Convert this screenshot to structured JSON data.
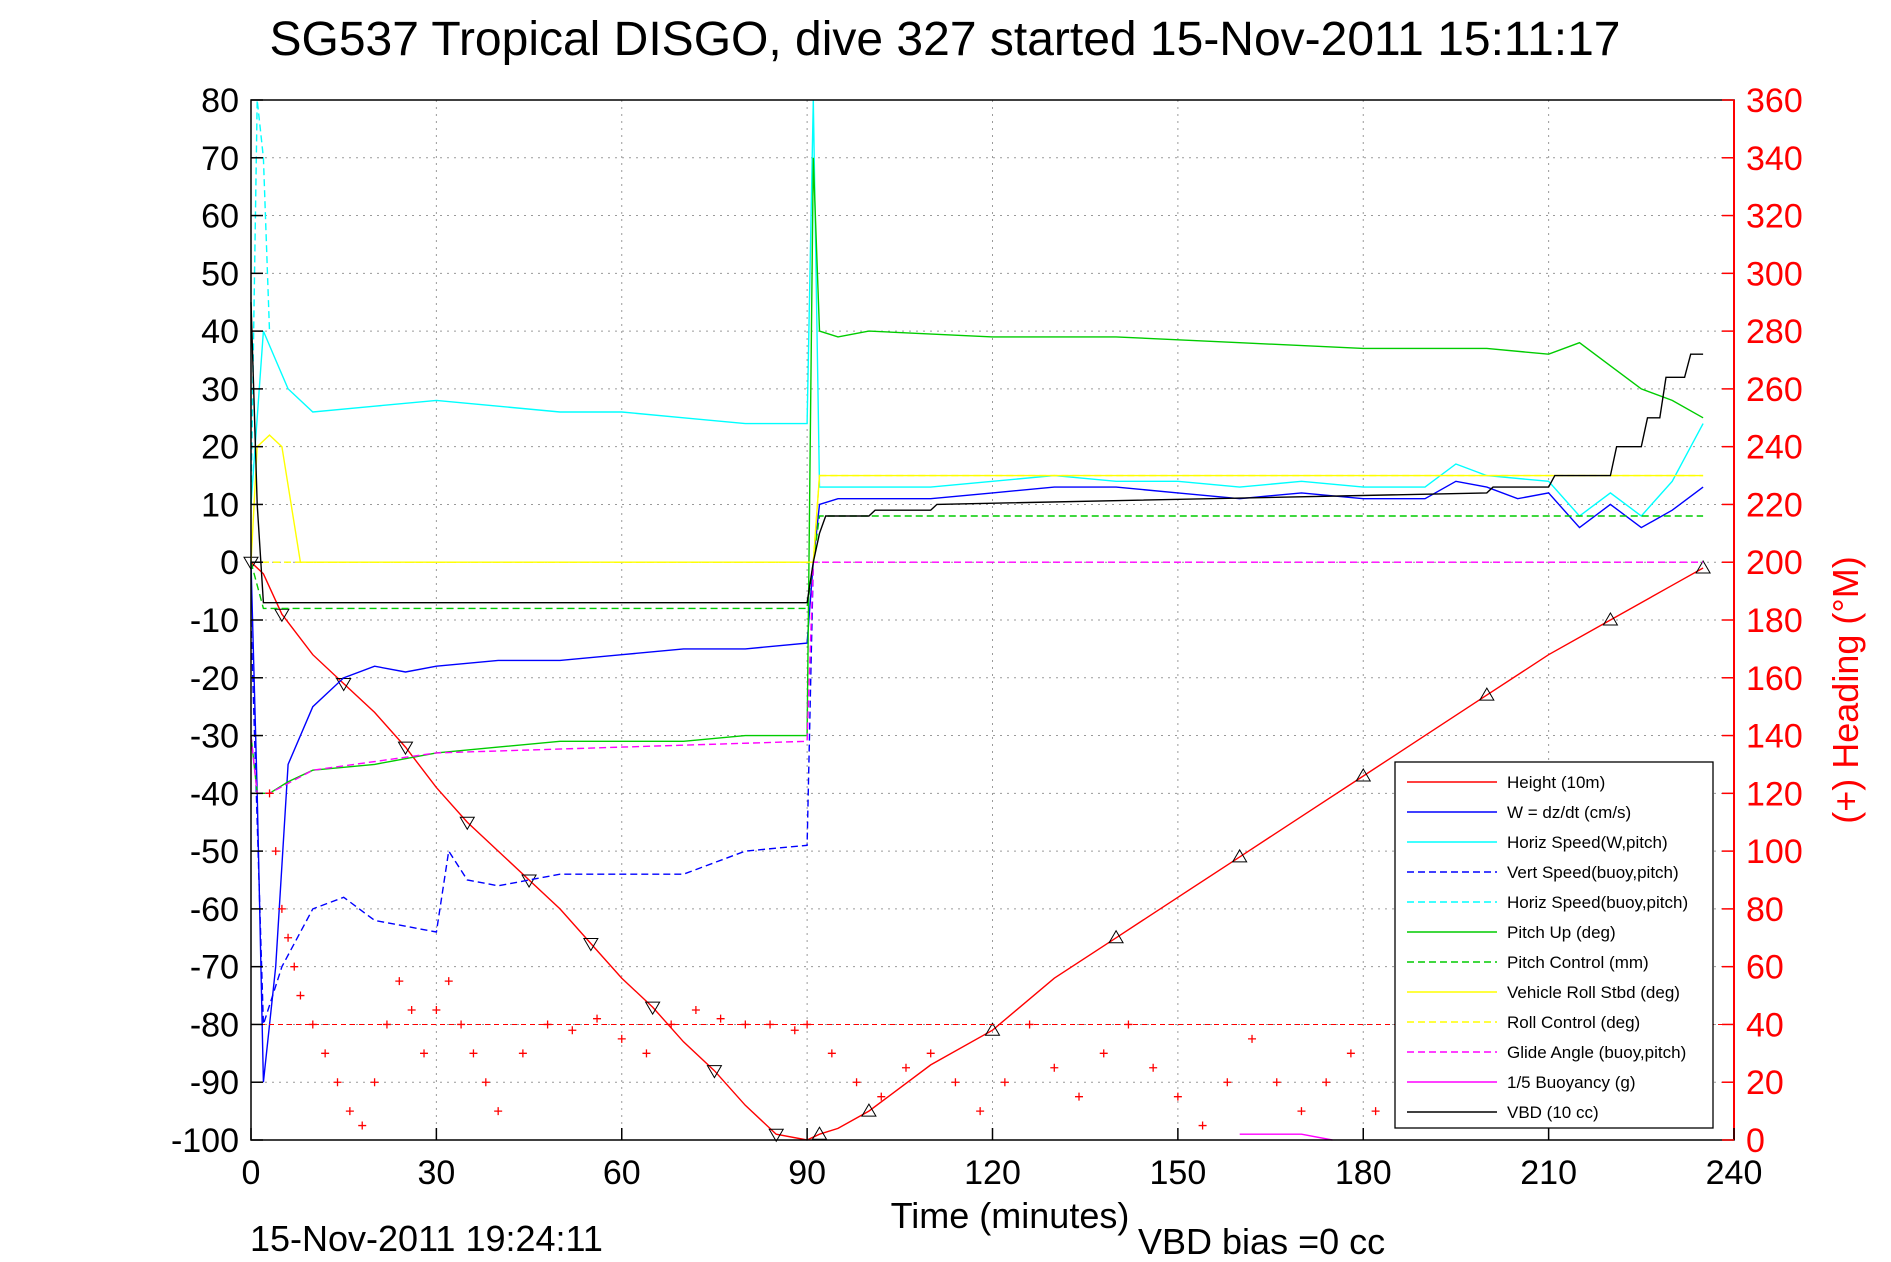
{
  "chart_data": {
    "type": "line",
    "title": "SG537 Tropical DISGO, dive 327 started 15-Nov-2011 15:11:17",
    "xlabel": "Time (minutes)",
    "ylabel_right": "(+) Heading (°M)",
    "footer_left": "15-Nov-2011 19:24:11",
    "footer_right": "VBD bias =0 cc",
    "xlim": [
      0,
      240
    ],
    "ylim": [
      -100,
      80
    ],
    "ylim_right": [
      0,
      360
    ],
    "xticks": [
      "0",
      "30",
      "60",
      "90",
      "120",
      "150",
      "180",
      "210",
      "240"
    ],
    "yticks_left": [
      "80",
      "70",
      "60",
      "50",
      "40",
      "30",
      "20",
      "10",
      "0",
      "-10",
      "-20",
      "-30",
      "-40",
      "-50",
      "-60",
      "-70",
      "-80",
      "-90",
      "-100"
    ],
    "yticks_right": [
      "360",
      "340",
      "320",
      "300",
      "280",
      "260",
      "240",
      "220",
      "200",
      "180",
      "160",
      "140",
      "120",
      "100",
      "80",
      "60",
      "40",
      "20",
      "0"
    ],
    "grid": true,
    "legend_position": "bottom-right",
    "colors": {
      "red": "#ff0000",
      "blue": "#0000ff",
      "cyan": "#00ffff",
      "green": "#00ff00",
      "yellow": "#ffff00",
      "magenta": "#ff00ff",
      "black": "#000000"
    },
    "legend": [
      {
        "label": "Height (10m)",
        "color": "#ff0000",
        "dash": false
      },
      {
        "label": "W = dz/dt (cm/s)",
        "color": "#0000ff",
        "dash": false
      },
      {
        "label": "Horiz Speed(W,pitch)",
        "color": "#00ffff",
        "dash": false
      },
      {
        "label": "Vert Speed(buoy,pitch)",
        "color": "#0000ff",
        "dash": true
      },
      {
        "label": "Horiz Speed(buoy,pitch)",
        "color": "#00ffff",
        "dash": true
      },
      {
        "label": "Pitch Up (deg)",
        "color": "#00cc00",
        "dash": false
      },
      {
        "label": "Pitch Control (mm)",
        "color": "#00cc00",
        "dash": true
      },
      {
        "label": "Vehicle Roll Stbd (deg)",
        "color": "#ffff00",
        "dash": false
      },
      {
        "label": "Roll Control (deg)",
        "color": "#ffff00",
        "dash": true
      },
      {
        "label": "Glide Angle (buoy,pitch)",
        "color": "#ff00ff",
        "dash": true
      },
      {
        "label": "1/5 Buoyancy (g)",
        "color": "#ff00ff",
        "dash": false
      },
      {
        "label": "VBD (10 cc)",
        "color": "#000000",
        "dash": false
      }
    ],
    "series": [
      {
        "name": "Height (10m)",
        "color": "#ff0000",
        "x": [
          0,
          2,
          5,
          10,
          15,
          20,
          25,
          30,
          35,
          40,
          45,
          50,
          55,
          60,
          65,
          70,
          75,
          80,
          85,
          90,
          92,
          95,
          100,
          110,
          120,
          130,
          140,
          150,
          160,
          170,
          180,
          190,
          200,
          210,
          220,
          230,
          235
        ],
        "y": [
          0,
          -2,
          -9,
          -16,
          -21,
          -26,
          -32,
          -39,
          -45,
          -50,
          -55,
          -60,
          -66,
          -72,
          -77,
          -83,
          -88,
          -94,
          -99,
          -100,
          -99,
          -98,
          -95,
          -87,
          -81,
          -72,
          -65,
          -58,
          -51,
          -44,
          -37,
          -30,
          -23,
          -16,
          -10,
          -4,
          -1
        ]
      },
      {
        "name": "W = dz/dt (cm/s)",
        "color": "#0000ff",
        "x": [
          0,
          1,
          2,
          4,
          6,
          10,
          15,
          20,
          25,
          30,
          40,
          50,
          60,
          70,
          80,
          90,
          91,
          92,
          95,
          100,
          110,
          120,
          130,
          140,
          150,
          160,
          170,
          180,
          190,
          195,
          200,
          205,
          210,
          215,
          220,
          225,
          230,
          235
        ],
        "y": [
          0,
          -40,
          -90,
          -70,
          -35,
          -25,
          -20,
          -18,
          -19,
          -18,
          -17,
          -17,
          -16,
          -15,
          -15,
          -14,
          0,
          10,
          11,
          11,
          11,
          12,
          13,
          13,
          12,
          11,
          12,
          11,
          11,
          14,
          13,
          11,
          12,
          6,
          10,
          6,
          9,
          13
        ]
      },
      {
        "name": "Horiz Speed(W,pitch)",
        "color": "#00ffff",
        "x": [
          0,
          1,
          2,
          4,
          6,
          10,
          20,
          30,
          40,
          50,
          60,
          70,
          80,
          90,
          91,
          92,
          95,
          100,
          110,
          120,
          130,
          140,
          150,
          160,
          170,
          180,
          190,
          195,
          200,
          210,
          215,
          220,
          225,
          230,
          235
        ],
        "y": [
          10,
          25,
          40,
          35,
          30,
          26,
          27,
          28,
          27,
          26,
          26,
          25,
          24,
          24,
          80,
          13,
          13,
          13,
          13,
          14,
          15,
          14,
          14,
          13,
          14,
          13,
          13,
          17,
          15,
          14,
          8,
          12,
          8,
          14,
          24
        ]
      },
      {
        "name": "Vert Speed(buoy,pitch)",
        "color": "#0000ff",
        "dash": true,
        "x": [
          0,
          2,
          5,
          10,
          15,
          20,
          25,
          30,
          32,
          35,
          40,
          45,
          50,
          60,
          70,
          80,
          90,
          91
        ],
        "y": [
          -10,
          -80,
          -70,
          -60,
          -58,
          -62,
          -63,
          -64,
          -50,
          -55,
          -56,
          -55,
          -54,
          -54,
          -54,
          -50,
          -49,
          0
        ]
      },
      {
        "name": "Horiz Speed(buoy,pitch)",
        "color": "#00ffff",
        "dash": true,
        "x": [
          0,
          1,
          2,
          3
        ],
        "y": [
          10,
          80,
          70,
          40
        ]
      },
      {
        "name": "Pitch Up (deg)",
        "color": "#00cc00",
        "x": [
          0,
          1,
          3,
          6,
          10,
          20,
          30,
          40,
          50,
          60,
          70,
          80,
          90,
          91,
          92,
          95,
          100,
          120,
          140,
          160,
          180,
          200,
          210,
          215,
          220,
          225,
          230,
          235
        ],
        "y": [
          -30,
          -40,
          -40,
          -38,
          -36,
          -35,
          -33,
          -32,
          -31,
          -31,
          -31,
          -30,
          -30,
          70,
          40,
          39,
          40,
          39,
          39,
          38,
          37,
          37,
          36,
          38,
          34,
          30,
          28,
          25
        ]
      },
      {
        "name": "Pitch Control (mm)",
        "color": "#00cc00",
        "dash": true,
        "x": [
          0,
          2,
          90,
          91,
          92,
          235
        ],
        "y": [
          0,
          -8,
          -8,
          0,
          8,
          8
        ]
      },
      {
        "name": "Vehicle Roll Stbd (deg)",
        "color": "#ffff00",
        "x": [
          0,
          1,
          3,
          5,
          8,
          10,
          90,
          91,
          92,
          235
        ],
        "y": [
          0,
          20,
          22,
          20,
          0,
          0,
          0,
          0,
          15,
          15
        ]
      },
      {
        "name": "Roll Control (deg)",
        "color": "#ffff00",
        "dash": true,
        "x": [
          0,
          2,
          90,
          91,
          92,
          235
        ],
        "y": [
          0,
          0,
          0,
          0,
          15,
          15
        ]
      },
      {
        "name": "Glide Angle (buoy,pitch)",
        "color": "#ff00ff",
        "dash": true,
        "x": [
          0,
          1,
          3,
          10,
          30,
          60,
          90,
          91,
          92,
          235
        ],
        "y": [
          -30,
          -40,
          -40,
          -36,
          -33,
          -32,
          -31,
          0,
          0,
          0
        ]
      },
      {
        "name": "1/5 Buoyancy (g)",
        "color": "#ff00ff",
        "x": [
          160,
          170,
          175
        ],
        "y": [
          -99,
          -99,
          -100
        ]
      },
      {
        "name": "VBD (10 cc)",
        "color": "#000000",
        "x": [
          0,
          1,
          2,
          3,
          90,
          91,
          92,
          93,
          100,
          101,
          110,
          111,
          200,
          201,
          210,
          211,
          220,
          221,
          225,
          226,
          228,
          229,
          232,
          233,
          235
        ],
        "y": [
          45,
          10,
          -7,
          -7,
          -7,
          0,
          5,
          8,
          8,
          9,
          9,
          10,
          12,
          13,
          13,
          15,
          15,
          20,
          20,
          25,
          25,
          32,
          32,
          36,
          36
        ]
      },
      {
        "name": "Heading",
        "color": "#ff0000",
        "axis": "right",
        "x": [
          3,
          4,
          5,
          6,
          7,
          8,
          10,
          12,
          14,
          16,
          18,
          20,
          22,
          24,
          26,
          28,
          30,
          32,
          34,
          36,
          38,
          40,
          44,
          48,
          52,
          56,
          60,
          64,
          68,
          72,
          76,
          80,
          84,
          88,
          90,
          94,
          98,
          102,
          106,
          110,
          114,
          118,
          122,
          126,
          130,
          134,
          138,
          142,
          146,
          150,
          154,
          158,
          162,
          166,
          170,
          174,
          178,
          182,
          186,
          190
        ],
        "y": [
          120,
          100,
          80,
          70,
          60,
          50,
          40,
          30,
          20,
          10,
          5,
          20,
          40,
          55,
          45,
          30,
          45,
          55,
          40,
          30,
          20,
          10,
          30,
          40,
          38,
          42,
          35,
          30,
          40,
          45,
          42,
          40,
          40,
          38,
          40,
          30,
          20,
          15,
          25,
          30,
          20,
          10,
          20,
          40,
          25,
          15,
          30,
          40,
          25,
          15,
          5,
          20,
          35,
          20,
          10,
          20,
          30,
          10,
          25,
          35
        ]
      }
    ]
  }
}
